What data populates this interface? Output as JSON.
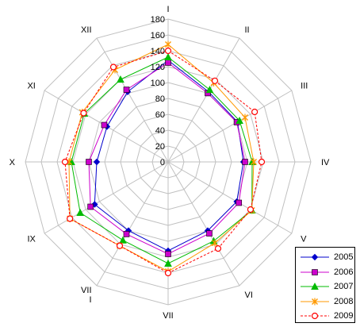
{
  "chart_data": {
    "type": "radar",
    "categories": [
      "I",
      "II",
      "III",
      "IV",
      "V",
      "VI",
      "VII",
      "VIII",
      "IX",
      "X",
      "XI",
      "XII"
    ],
    "category_display": [
      "I",
      "II",
      "III",
      "IV",
      "V",
      "VI",
      "VII",
      "VII\nI",
      "IX",
      "X",
      "XI",
      "XII"
    ],
    "rlim": [
      0,
      180
    ],
    "ticks": [
      "0",
      "20",
      "40",
      "60",
      "80",
      "100",
      "120",
      "140",
      "160",
      "180"
    ],
    "grid": true,
    "legend_position": "bottom-right",
    "series": [
      {
        "name": "2005",
        "color": "#0000cc",
        "marker": "diamond",
        "dash": false,
        "values": [
          128,
          102,
          101,
          95,
          100,
          100,
          112,
          100,
          107,
          90,
          89,
          102
        ]
      },
      {
        "name": "2006",
        "color": "#cc00cc",
        "marker": "square",
        "dash": false,
        "values": [
          125,
          100,
          100,
          97,
          103,
          104,
          116,
          105,
          113,
          100,
          93,
          105
        ]
      },
      {
        "name": "2007",
        "color": "#00bb00",
        "marker": "triangle",
        "dash": false,
        "values": [
          132,
          105,
          104,
          106,
          122,
          115,
          128,
          114,
          128,
          122,
          122,
          120
        ]
      },
      {
        "name": "2008",
        "color": "#ff9900",
        "marker": "x",
        "dash": false,
        "values": [
          148,
          115,
          112,
          108,
          122,
          118,
          138,
          122,
          143,
          125,
          125,
          134
        ]
      },
      {
        "name": "2009",
        "color": "#ff0000",
        "marker": "circle",
        "dash": true,
        "values": [
          140,
          118,
          126,
          118,
          120,
          126,
          140,
          122,
          143,
          130,
          123,
          138
        ]
      }
    ]
  }
}
